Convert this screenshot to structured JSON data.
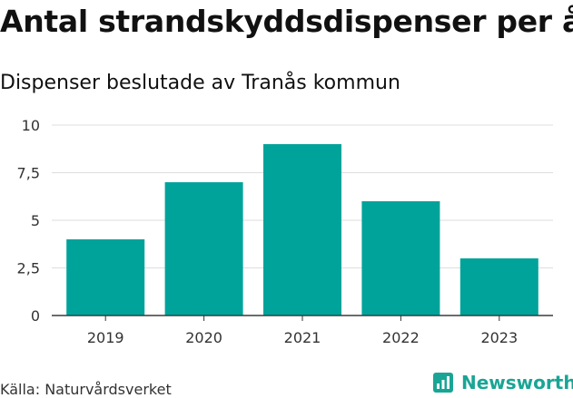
{
  "title": "Antal strandskyddsdispenser per år",
  "subtitle": "Dispenser beslutade av Tranås kommun",
  "source": "Källa: Naturvårdsverket",
  "brand": {
    "name": "Newsworthy",
    "icon": "newsworthy-logo-icon"
  },
  "colors": {
    "bar": "#00a39a",
    "grid": "#dddddd",
    "axis": "#333333",
    "brand": "#19a595"
  },
  "chart_data": {
    "type": "bar",
    "categories": [
      "2019",
      "2020",
      "2021",
      "2022",
      "2023"
    ],
    "values": [
      4,
      7,
      9,
      6,
      3
    ],
    "ylim": [
      0,
      10
    ],
    "yticks": [
      {
        "value": 0,
        "label": "0"
      },
      {
        "value": 2.5,
        "label": "2,5"
      },
      {
        "value": 5,
        "label": "5"
      },
      {
        "value": 7.5,
        "label": "7,5"
      },
      {
        "value": 10,
        "label": "10"
      }
    ],
    "xlabel": "",
    "ylabel": "",
    "grid": true
  }
}
